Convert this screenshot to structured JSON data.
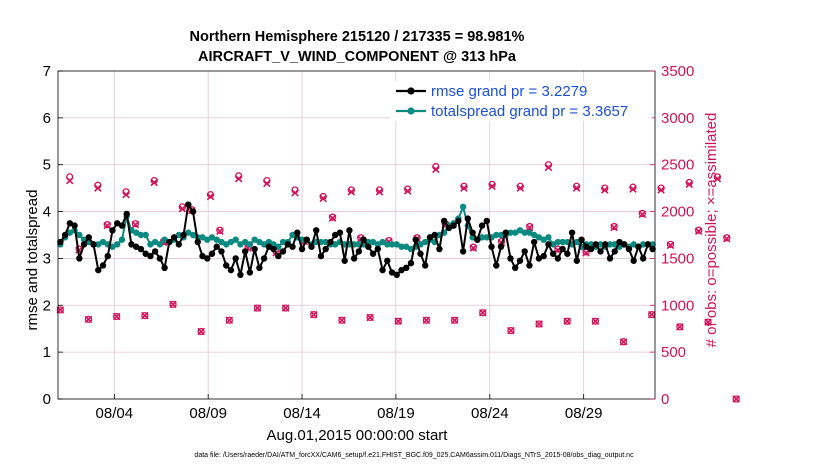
{
  "chart_data": {
    "type": "line",
    "title_line1": "Northern Hemisphere 215120 / 217335 = 98.981%",
    "title_line2": "AIRCRAFT_V_WIND_COMPONENT @ 313 hPa",
    "xlabel": "Aug.01,2015 00:00:00 start",
    "ylabel": "rmse and totalspread",
    "ylabel_right": "# of obs: o=possible; ×=assimilated",
    "xlim": [
      0,
      31.8
    ],
    "ylim": [
      0,
      7
    ],
    "ylim_right": [
      0,
      3500
    ],
    "x_ticks": [
      {
        "x": 3,
        "label": "08/04"
      },
      {
        "x": 8,
        "label": "08/09"
      },
      {
        "x": 13,
        "label": "08/14"
      },
      {
        "x": 18,
        "label": "08/19"
      },
      {
        "x": 23,
        "label": "08/24"
      },
      {
        "x": 28,
        "label": "08/29"
      }
    ],
    "y_ticks": [
      "0",
      "1",
      "2",
      "3",
      "4",
      "5",
      "6",
      "7"
    ],
    "y_ticks_right": [
      "0",
      "500",
      "1000",
      "1500",
      "2000",
      "2500",
      "3000",
      "3500"
    ],
    "legend": [
      {
        "label": "rmse grand pr = 3.2279",
        "color": "#000000"
      },
      {
        "label": "totalspread grand pr = 3.3657",
        "color": "#0a8a80"
      }
    ],
    "footer": "data file: /Users/raeder/DAI/ATM_forcXX/CAM6_setup/f.e21.FHIST_BGC.f09_025.CAM6assim.011/Diags_NTrS_2015-08/obs_diag_output.nc",
    "series": [
      {
        "name": "rmse",
        "color": "#000000",
        "values": [
          3.35,
          3.5,
          3.75,
          3.7,
          3.0,
          3.3,
          3.45,
          3.3,
          2.75,
          2.85,
          3.05,
          3.6,
          3.75,
          3.7,
          3.95,
          3.3,
          3.25,
          3.2,
          3.1,
          3.05,
          3.15,
          3.0,
          2.8,
          3.35,
          3.45,
          3.3,
          3.5,
          4.15,
          4.0,
          3.35,
          3.05,
          3.0,
          3.1,
          3.25,
          3.15,
          2.85,
          2.75,
          3.0,
          2.65,
          3.15,
          2.7,
          3.2,
          2.8,
          3.0,
          3.25,
          3.2,
          3.05,
          3.15,
          3.3,
          3.25,
          3.55,
          3.2,
          3.4,
          3.25,
          3.6,
          3.05,
          3.2,
          3.35,
          3.5,
          3.55,
          2.95,
          3.6,
          3.0,
          3.15,
          3.4,
          3.25,
          3.1,
          3.2,
          2.75,
          2.95,
          2.7,
          2.65,
          2.75,
          2.8,
          2.9,
          3.4,
          3.1,
          2.85,
          3.45,
          3.5,
          3.2,
          3.8,
          3.65,
          3.7,
          3.8,
          3.15,
          3.85,
          3.55,
          3.4,
          3.7,
          3.8,
          3.25,
          2.85,
          3.25,
          3.55,
          3.0,
          2.8,
          2.95,
          3.15,
          2.85,
          3.35,
          3.0,
          3.05,
          3.3,
          3.1,
          3.0,
          3.2,
          3.1,
          3.55,
          2.95,
          3.4,
          3.25,
          3.2,
          3.3,
          3.15,
          3.3,
          3.0,
          3.15,
          3.35,
          3.3,
          3.2,
          2.95,
          3.25,
          3.0,
          3.3,
          3.2
        ]
      },
      {
        "name": "totalspread",
        "color": "#0a8a80",
        "values": [
          3.3,
          3.45,
          3.55,
          3.6,
          3.5,
          3.4,
          3.35,
          3.3,
          3.3,
          3.35,
          3.3,
          3.25,
          3.3,
          3.4,
          3.9,
          3.6,
          3.55,
          3.5,
          3.5,
          3.3,
          3.35,
          3.3,
          3.4,
          3.35,
          3.4,
          3.5,
          3.45,
          3.55,
          3.5,
          3.45,
          3.45,
          3.4,
          3.45,
          3.4,
          3.35,
          3.3,
          3.35,
          3.4,
          3.3,
          3.35,
          3.3,
          3.4,
          3.35,
          3.3,
          3.35,
          3.3,
          3.25,
          3.35,
          3.35,
          3.5,
          3.45,
          3.4,
          3.4,
          3.3,
          3.35,
          3.35,
          3.35,
          3.3,
          3.3,
          3.35,
          3.3,
          3.3,
          3.3,
          3.3,
          3.3,
          3.35,
          3.35,
          3.3,
          3.35,
          3.3,
          3.3,
          3.3,
          3.25,
          3.25,
          3.2,
          3.25,
          3.3,
          3.35,
          3.4,
          3.35,
          3.5,
          3.55,
          3.7,
          3.75,
          3.85,
          4.1,
          3.7,
          3.45,
          3.4,
          3.45,
          3.45,
          3.45,
          3.5,
          3.5,
          3.5,
          3.55,
          3.55,
          3.6,
          3.55,
          3.55,
          3.5,
          3.45,
          3.4,
          3.45,
          3.3,
          3.35,
          3.35,
          3.35,
          3.3,
          3.35,
          3.25,
          3.3,
          3.3,
          3.25,
          3.3,
          3.25,
          3.3,
          3.3,
          3.25,
          3.3,
          3.25,
          3.3,
          3.25,
          3.3,
          3.3,
          3.3
        ]
      }
    ],
    "obs_series": {
      "name": "# of obs",
      "color": "#d0135a",
      "x_start": 0.125,
      "x_step": 0.5,
      "possible": [
        950,
        2370,
        1600,
        850,
        2280,
        1860,
        880,
        2210,
        1870,
        890,
        2330,
        1680,
        1010,
        2050,
        2020,
        720,
        2180,
        1800,
        840,
        2380,
        1620,
        970,
        2330,
        1570,
        970,
        2230,
        1690,
        900,
        2160,
        1940,
        840,
        2230,
        1720,
        870,
        2230,
        1690,
        830,
        2240,
        1720,
        840,
        2480,
        1870,
        840,
        2270,
        1620,
        920,
        2290,
        1680,
        730,
        2270,
        1840,
        800,
        2500,
        1600,
        830,
        2270,
        1570,
        830,
        2250,
        1840,
        610,
        2260,
        1980,
        900,
        2250,
        1650,
        770,
        2310,
        1800,
        820,
        2370,
        1720,
        0
      ],
      "assimilated": [
        950,
        2330,
        1590,
        850,
        2250,
        1850,
        880,
        2180,
        1860,
        890,
        2310,
        1670,
        1010,
        2030,
        2010,
        720,
        2160,
        1790,
        840,
        2350,
        1610,
        970,
        2300,
        1560,
        970,
        2200,
        1680,
        900,
        2140,
        1930,
        840,
        2210,
        1710,
        870,
        2210,
        1680,
        830,
        2220,
        1710,
        840,
        2450,
        1860,
        840,
        2250,
        1610,
        920,
        2270,
        1670,
        730,
        2250,
        1830,
        800,
        2470,
        1590,
        830,
        2250,
        1560,
        830,
        2230,
        1830,
        610,
        2240,
        1970,
        900,
        2230,
        1640,
        770,
        2290,
        1790,
        820,
        2350,
        1710,
        0
      ]
    }
  }
}
